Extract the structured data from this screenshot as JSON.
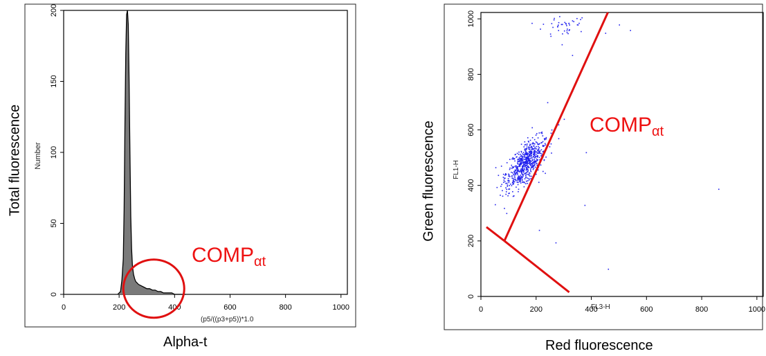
{
  "chart_data": [
    {
      "type": "histogram",
      "inner_xlabel": "(p5/((p3+p5))*1.0",
      "inner_ylabel": "Number",
      "outer_xlabel": "Alpha-t",
      "outer_ylabel": "Total fluorescence",
      "xlim": [
        0,
        1023
      ],
      "ylim": [
        0,
        200
      ],
      "xticks": [
        0,
        200,
        400,
        600,
        800,
        1000
      ],
      "yticks": [
        0,
        50,
        100,
        150,
        200
      ],
      "annotation": {
        "text": "COMP",
        "subscript": "αt",
        "color": "#ee1111"
      },
      "circle_center": [
        325,
        5
      ],
      "series": [
        {
          "x": [
            195,
            205,
            210,
            215,
            218,
            221,
            224,
            227,
            230,
            233,
            236,
            239,
            242,
            245,
            248,
            252,
            256,
            260,
            265,
            270,
            280,
            290,
            300,
            310,
            320,
            330,
            340,
            350,
            360,
            370,
            380,
            390,
            400,
            420,
            440
          ],
          "y": [
            0,
            2,
            10,
            25,
            60,
            120,
            170,
            197,
            200,
            190,
            150,
            100,
            55,
            32,
            20,
            14,
            11,
            9,
            8,
            7,
            6,
            5,
            4,
            4,
            3,
            3,
            2,
            2,
            1,
            1,
            1,
            1,
            0,
            0,
            0
          ]
        }
      ]
    },
    {
      "type": "scatter",
      "inner_xlabel": "FL3-H",
      "inner_ylabel": "FL1-H",
      "outer_xlabel": "Red fluorescence",
      "outer_ylabel": "Green fluorescence",
      "xlim": [
        0,
        1023
      ],
      "ylim": [
        0,
        1023
      ],
      "xticks": [
        0,
        200,
        400,
        600,
        800,
        1000
      ],
      "yticks": [
        0,
        200,
        400,
        600,
        800,
        1000
      ],
      "annotation": {
        "text": "COMP",
        "subscript": "αt",
        "color": "#ee1111"
      },
      "point_color": "#2222ee",
      "cluster": {
        "center": [
          160,
          480
        ],
        "spread": [
          50,
          60
        ],
        "count": 650
      },
      "outliers": [
        [
          860,
          388
        ],
        [
          460,
          100
        ],
        [
          375,
          330
        ],
        [
          270,
          195
        ],
        [
          210,
          240
        ],
        [
          330,
          740
        ],
        [
          450,
          950
        ],
        [
          300,
          640
        ],
        [
          420,
          600
        ],
        [
          240,
          700
        ],
        [
          280,
          620
        ],
        [
          380,
          520
        ],
        [
          330,
          870
        ],
        [
          500,
          980
        ],
        [
          540,
          960
        ]
      ],
      "top_cluster": {
        "center": [
          300,
          980
        ],
        "spread": [
          40,
          25
        ],
        "count": 45
      },
      "gate_lines": [
        {
          "x": [
            85,
            460
          ],
          "y": [
            200,
            1023
          ]
        },
        {
          "x": [
            85,
            320
          ],
          "y": [
            200,
            15
          ]
        },
        {
          "x": [
            85,
            20
          ],
          "y": [
            200,
            250
          ]
        }
      ]
    }
  ]
}
